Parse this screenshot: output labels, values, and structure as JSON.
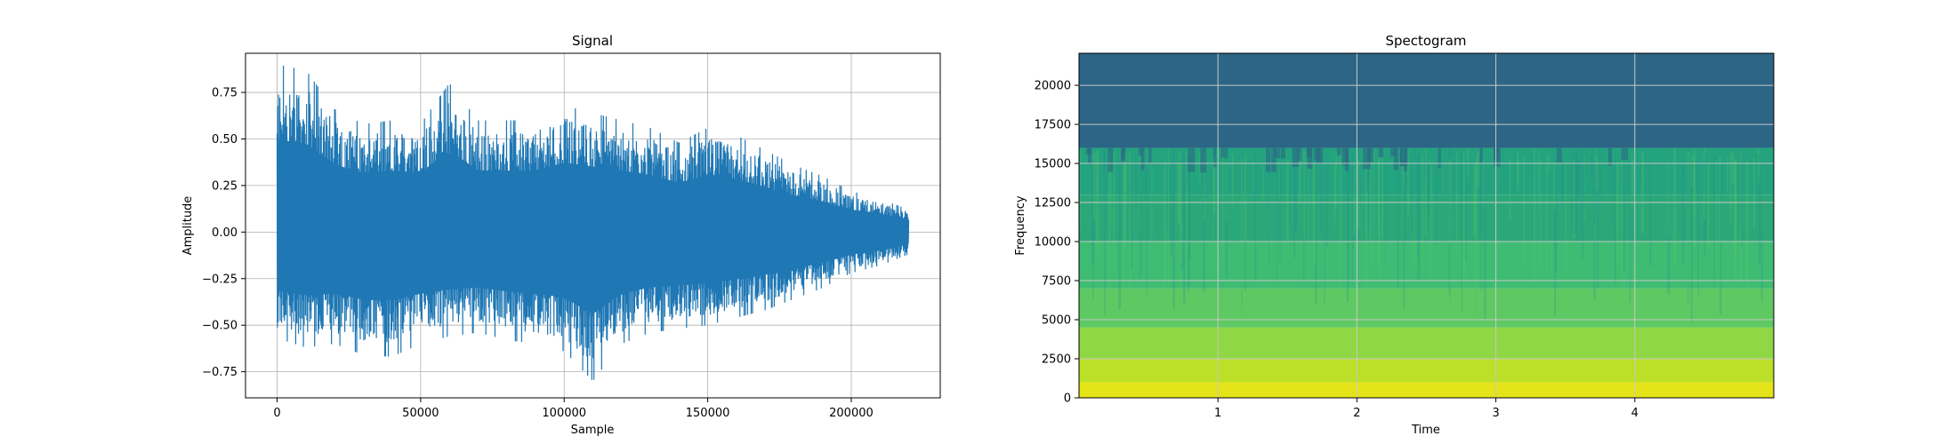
{
  "chart_data": [
    {
      "type": "line",
      "title": "Signal",
      "xlabel": "Sample",
      "ylabel": "Amplitude",
      "xlim": [
        -11000,
        231000
      ],
      "ylim": [
        -0.89,
        0.96
      ],
      "xticks": [
        0,
        50000,
        100000,
        150000,
        200000
      ],
      "xtick_labels": [
        "0",
        "50000",
        "100000",
        "150000",
        "200000"
      ],
      "yticks": [
        -0.75,
        -0.5,
        -0.25,
        0.0,
        0.25,
        0.5,
        0.75
      ],
      "ytick_labels": [
        "−0.75",
        "−0.50",
        "−0.25",
        "0.00",
        "0.25",
        "0.50",
        "0.75"
      ],
      "grid": true,
      "series": [
        {
          "color": "#1f77b4",
          "x": [
            0,
            10000,
            20000,
            30000,
            40000,
            50000,
            60000,
            70000,
            80000,
            90000,
            100000,
            110000,
            120000,
            130000,
            140000,
            150000,
            160000,
            170000,
            180000,
            190000,
            200000,
            210000,
            220000
          ],
          "upper": [
            0.9,
            0.87,
            0.66,
            0.58,
            0.6,
            0.58,
            0.8,
            0.6,
            0.6,
            0.6,
            0.68,
            0.64,
            0.6,
            0.56,
            0.48,
            0.56,
            0.52,
            0.44,
            0.36,
            0.3,
            0.22,
            0.18,
            0.12
          ],
          "lower": [
            -0.57,
            -0.62,
            -0.6,
            -0.66,
            -0.67,
            -0.6,
            -0.56,
            -0.54,
            -0.58,
            -0.6,
            -0.64,
            -0.8,
            -0.6,
            -0.54,
            -0.52,
            -0.5,
            -0.46,
            -0.42,
            -0.36,
            -0.3,
            -0.22,
            -0.18,
            -0.12
          ]
        }
      ]
    },
    {
      "type": "heatmap",
      "title": "Spectogram",
      "xlabel": "Time",
      "ylabel": "Frequency",
      "xlim": [
        0,
        5
      ],
      "ylim": [
        0,
        22050
      ],
      "xticks": [
        1,
        2,
        3,
        4
      ],
      "xtick_labels": [
        "1",
        "2",
        "3",
        "4"
      ],
      "yticks": [
        0,
        2500,
        5000,
        7500,
        10000,
        12500,
        15000,
        17500,
        20000
      ],
      "ytick_labels": [
        "0",
        "2500",
        "5000",
        "7500",
        "10000",
        "12500",
        "15000",
        "17500",
        "20000"
      ],
      "grid": true,
      "colormap": "viridis",
      "frequency_bands": [
        {
          "f_low": 0,
          "f_high": 1000,
          "color": "#e4e419"
        },
        {
          "f_low": 1000,
          "f_high": 2500,
          "color": "#bcdf27"
        },
        {
          "f_low": 2500,
          "f_high": 4500,
          "color": "#8fd744"
        },
        {
          "f_low": 4500,
          "f_high": 7000,
          "color": "#5ec962"
        },
        {
          "f_low": 7000,
          "f_high": 10000,
          "color": "#3fbc73"
        },
        {
          "f_low": 10000,
          "f_high": 13000,
          "color": "#2ba87a"
        },
        {
          "f_low": 13000,
          "f_high": 16000,
          "color": "#24a37f"
        },
        {
          "f_low": 16000,
          "f_high": 22050,
          "color": "#2c6585"
        }
      ]
    }
  ]
}
